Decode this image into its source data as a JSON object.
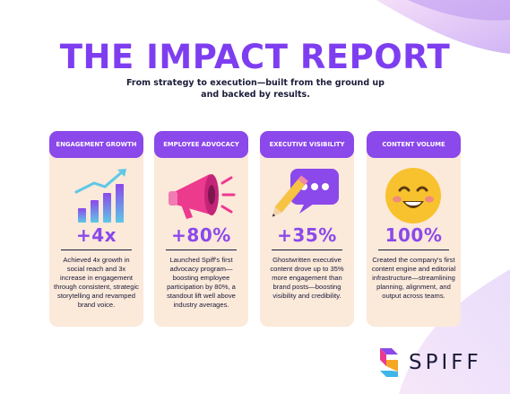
{
  "title": "THE IMPACT REPORT",
  "subtitle": "From strategy to execution—built from the ground up and backed by results.",
  "colors": {
    "accent": "#8b48ea",
    "title": "#7e3ef0",
    "card_bg": "#fbe9da",
    "text": "#1b1b3a"
  },
  "cards": [
    {
      "header": "ENGAGEMENT GROWTH",
      "icon": "growth-bar-chart-icon",
      "stat": "+4x",
      "description": "Achieved 4x growth in social reach and 3x increase in engagement through consistent, strategic storytelling and revamped brand voice."
    },
    {
      "header": "EMPLOYEE ADVOCACY",
      "icon": "megaphone-icon",
      "stat": "+80%",
      "description": "Launched Spiff's first advocacy program—boosting employee participation by 80%, a standout lift well above industry averages."
    },
    {
      "header": "EXECUTIVE VISIBILITY",
      "icon": "speech-bubble-pencil-icon",
      "stat": "+35%",
      "description": "Ghostwritten executive content drove up to 35% more engagement than brand posts—boosting visibility and credibility."
    },
    {
      "header": "CONTENT VOLUME",
      "icon": "smiley-face-icon",
      "stat": "100%",
      "description": "Created the company's first content engine and editorial infrastructure—streamlining planning, alignment, and output across teams."
    }
  ],
  "logo": {
    "text": "SPIFF",
    "icon": "spiff-logo-icon"
  }
}
